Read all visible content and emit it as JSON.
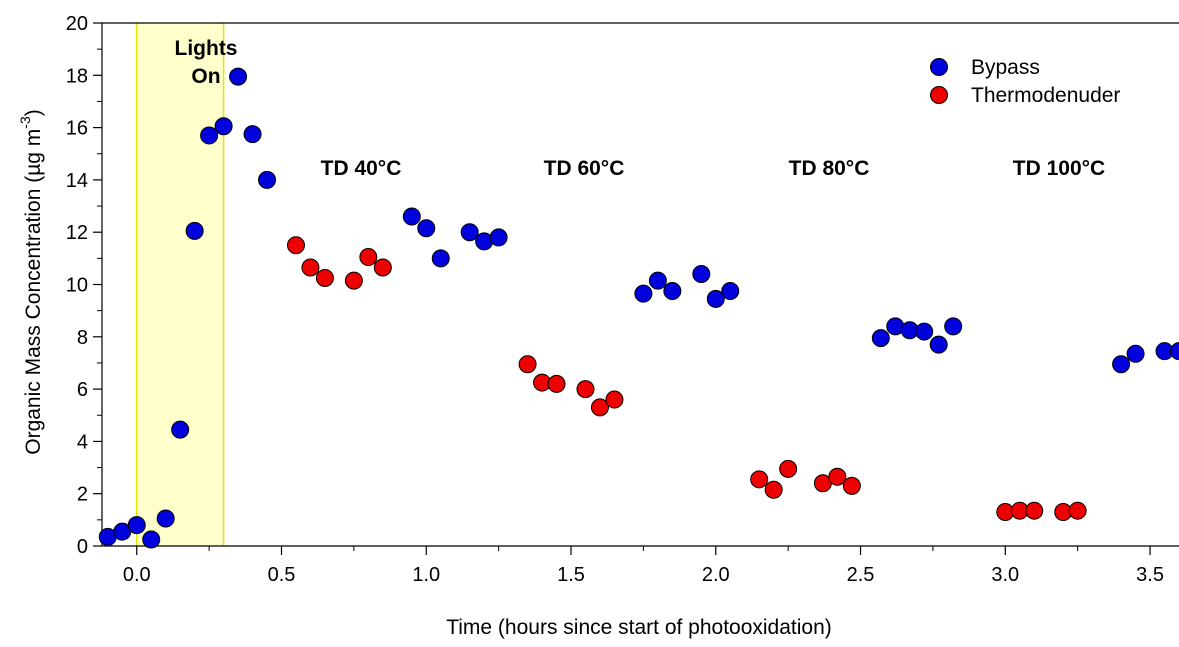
{
  "chart_data": {
    "type": "scatter",
    "xlabel": "Time (hours since start of photooxidation)",
    "ylabel": "Organic Mass Concentration (µg m",
    "ylabel_exponent": "-3",
    "ylabel_close": ")",
    "xlim": [
      -0.12,
      3.6
    ],
    "ylim": [
      0,
      20
    ],
    "x_ticks": [
      0.0,
      0.5,
      1.0,
      1.5,
      2.0,
      2.5,
      3.0,
      3.5
    ],
    "x_tick_labels": [
      "0.0",
      "0.5",
      "1.0",
      "1.5",
      "2.0",
      "2.5",
      "3.0",
      "3.5"
    ],
    "y_ticks": [
      0,
      2,
      4,
      6,
      8,
      10,
      12,
      14,
      16,
      18,
      20
    ],
    "y_tick_labels": [
      "0",
      "2",
      "4",
      "6",
      "8",
      "10",
      "12",
      "14",
      "16",
      "18",
      "20"
    ],
    "grid": false,
    "legend_position": "top-right",
    "highlight_region": {
      "x_start": 0.0,
      "x_end": 0.3,
      "label_line1": "Lights",
      "label_line2": "On",
      "color": "#ffffcc",
      "edge_color": "#e6e600"
    },
    "annotations": [
      {
        "text": "TD 40°C",
        "x": 0.72,
        "y": 14.7
      },
      {
        "text": "TD 60°C",
        "x": 1.5,
        "y": 14.7
      },
      {
        "text": "TD 80°C",
        "x": 2.4,
        "y": 14.7
      },
      {
        "text": "TD 100°C",
        "x": 3.2,
        "y": 14.7
      }
    ],
    "series": [
      {
        "name": "Bypass",
        "color": "#0000dd",
        "points": [
          [
            -0.1,
            0.35
          ],
          [
            -0.05,
            0.55
          ],
          [
            0.0,
            0.8
          ],
          [
            0.05,
            0.25
          ],
          [
            0.1,
            1.05
          ],
          [
            0.15,
            4.45
          ],
          [
            0.2,
            12.05
          ],
          [
            0.25,
            15.7
          ],
          [
            0.3,
            16.05
          ],
          [
            0.35,
            17.95
          ],
          [
            0.4,
            15.75
          ],
          [
            0.45,
            14.0
          ],
          [
            0.95,
            12.6
          ],
          [
            1.0,
            12.15
          ],
          [
            1.05,
            11.0
          ],
          [
            1.15,
            12.0
          ],
          [
            1.2,
            11.65
          ],
          [
            1.25,
            11.8
          ],
          [
            1.75,
            9.65
          ],
          [
            1.8,
            10.15
          ],
          [
            1.85,
            9.75
          ],
          [
            1.95,
            10.4
          ],
          [
            2.0,
            9.45
          ],
          [
            2.05,
            9.75
          ],
          [
            2.57,
            7.95
          ],
          [
            2.62,
            8.4
          ],
          [
            2.67,
            8.25
          ],
          [
            2.72,
            8.2
          ],
          [
            2.77,
            7.7
          ],
          [
            2.82,
            8.4
          ],
          [
            3.4,
            6.95
          ],
          [
            3.45,
            7.35
          ],
          [
            3.55,
            7.45
          ],
          [
            3.6,
            7.45
          ]
        ]
      },
      {
        "name": "Thermodenuder",
        "color": "#ee0000",
        "points": [
          [
            0.55,
            11.5
          ],
          [
            0.6,
            10.65
          ],
          [
            0.65,
            10.25
          ],
          [
            0.75,
            10.15
          ],
          [
            0.8,
            11.05
          ],
          [
            0.85,
            10.65
          ],
          [
            1.35,
            6.95
          ],
          [
            1.4,
            6.25
          ],
          [
            1.45,
            6.2
          ],
          [
            1.55,
            6.0
          ],
          [
            1.6,
            5.3
          ],
          [
            1.65,
            5.6
          ],
          [
            2.15,
            2.55
          ],
          [
            2.2,
            2.15
          ],
          [
            2.25,
            2.95
          ],
          [
            2.37,
            2.4
          ],
          [
            2.42,
            2.65
          ],
          [
            2.47,
            2.3
          ],
          [
            3.0,
            1.3
          ],
          [
            3.05,
            1.35
          ],
          [
            3.1,
            1.35
          ],
          [
            3.2,
            1.3
          ],
          [
            3.25,
            1.35
          ]
        ]
      }
    ]
  }
}
